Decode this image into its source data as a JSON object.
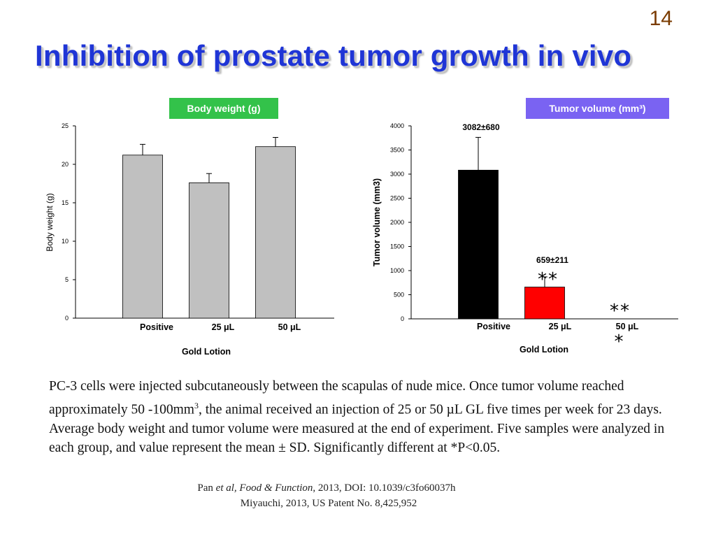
{
  "slide": {
    "number": "14",
    "title": "Inhibition of prostate tumor growth in vivo"
  },
  "colors": {
    "title": "#1f35d6",
    "green_badge": "#33c24a",
    "purple_badge": "#7a63f2",
    "bar_gray": "#c0c0c0",
    "bar_black": "#000000",
    "bar_red": "#ff0000"
  },
  "chart_data": [
    {
      "type": "bar",
      "title": "Body weight (g)",
      "categories": [
        "Positive",
        "25 μL",
        "50 μL"
      ],
      "values": [
        21.2,
        17.6,
        22.3
      ],
      "errors": [
        1.4,
        1.2,
        1.2
      ],
      "ylabel": "Body weight (g)",
      "xlabel": "Gold Lotion",
      "ylim": [
        0,
        25
      ],
      "yticks": [
        "0",
        "5",
        "10",
        "15",
        "20",
        "25"
      ],
      "bar_colors": [
        "#c0c0c0",
        "#c0c0c0",
        "#c0c0c0"
      ]
    },
    {
      "type": "bar",
      "title": "Tumor volume (mm³)",
      "categories": [
        "Positive",
        "25 μL",
        "50 μL"
      ],
      "values": [
        3082,
        659,
        0
      ],
      "errors": [
        680,
        211,
        0
      ],
      "data_labels": [
        "3082±680",
        "659±211",
        ""
      ],
      "significance": [
        "",
        "**",
        "**\n*"
      ],
      "ylabel": "Tumor volume (mm3)",
      "xlabel": "Gold Lotion",
      "ylim": [
        0,
        4000
      ],
      "yticks": [
        "0",
        "500",
        "1000",
        "1500",
        "2000",
        "2500",
        "3000",
        "3500",
        "4000"
      ],
      "bar_colors": [
        "#000000",
        "#ff0000",
        "#ff0000"
      ]
    }
  ],
  "caption": {
    "part1": "PC-3 cells were injected subcutaneously between the scapulas of nude mice. Once tumor volume reached approximately 50 -100mm",
    "sup": "3",
    "part2": ", the animal received an injection of 25 or 50 µL GL five times per week for 23 days.  Average body weight and tumor volume were measured at the end of experiment. Five samples were analyzed in each group, and value represent the mean ± SD. Significantly different at *P<0.05."
  },
  "references": {
    "ref1_author": "Pan ",
    "ref1_etal": "et al, Food & Function",
    "ref1_rest": ", 2013, DOI: 10.1039/c3fo60037h",
    "ref2": "Miyauchi,  2013, US Patent No. 8,425,952"
  }
}
